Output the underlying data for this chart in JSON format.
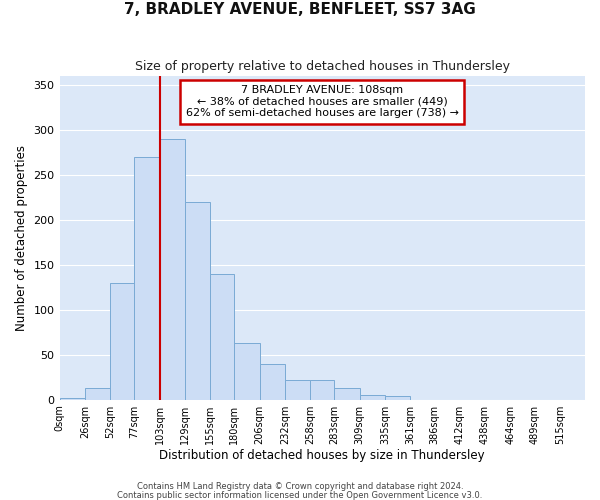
{
  "title1": "7, BRADLEY AVENUE, BENFLEET, SS7 3AG",
  "title2": "Size of property relative to detached houses in Thundersley",
  "xlabel": "Distribution of detached houses by size in Thundersley",
  "ylabel": "Number of detached properties",
  "bar_labels": [
    "0sqm",
    "26sqm",
    "52sqm",
    "77sqm",
    "103sqm",
    "129sqm",
    "155sqm",
    "180sqm",
    "206sqm",
    "232sqm",
    "258sqm",
    "283sqm",
    "309sqm",
    "335sqm",
    "361sqm",
    "386sqm",
    "412sqm",
    "438sqm",
    "464sqm",
    "489sqm",
    "515sqm"
  ],
  "bar_values": [
    2,
    13,
    130,
    270,
    290,
    220,
    140,
    63,
    40,
    22,
    22,
    13,
    5,
    4,
    0,
    0,
    0,
    0,
    0,
    0,
    0
  ],
  "bar_color": "#ccddf5",
  "bar_edge_color": "#7aaad4",
  "plot_bg_color": "#dce8f8",
  "fig_bg_color": "#ffffff",
  "grid_color": "#ffffff",
  "red_line_x": 103,
  "annotation_title": "7 BRADLEY AVENUE: 108sqm",
  "annotation_line1": "← 38% of detached houses are smaller (449)",
  "annotation_line2": "62% of semi-detached houses are larger (738) →",
  "annotation_box_color": "#ffffff",
  "annotation_box_edge": "#cc0000",
  "red_line_color": "#cc0000",
  "ylim": [
    0,
    360
  ],
  "yticks": [
    0,
    50,
    100,
    150,
    200,
    250,
    300,
    350
  ],
  "footer1": "Contains HM Land Registry data © Crown copyright and database right 2024.",
  "footer2": "Contains public sector information licensed under the Open Government Licence v3.0.",
  "bin_edges": [
    0,
    26,
    52,
    77,
    103,
    129,
    155,
    180,
    206,
    232,
    258,
    283,
    309,
    335,
    361,
    386,
    412,
    438,
    464,
    489,
    515,
    541
  ]
}
